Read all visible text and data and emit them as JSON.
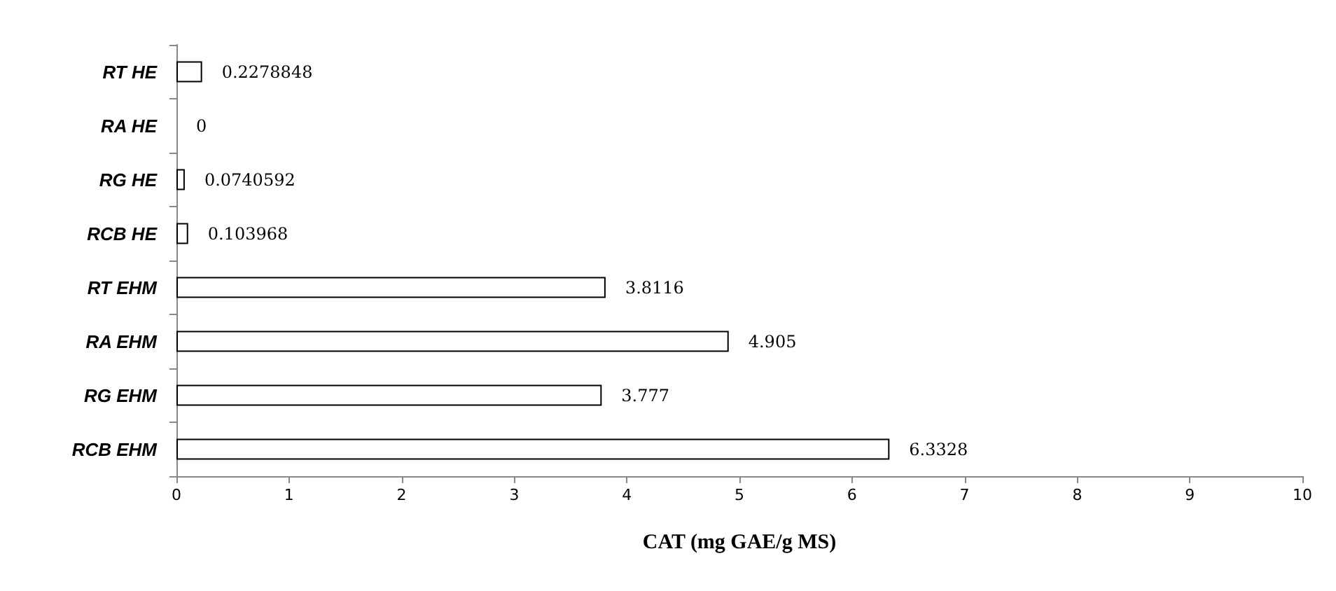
{
  "chart_data": {
    "type": "bar",
    "orientation": "horizontal",
    "categories": [
      "RT HE",
      "RA HE",
      "RG HE",
      "RCB HE",
      "RT EHM",
      "RA EHM",
      "RG EHM",
      "RCB EHM"
    ],
    "values": [
      0.2278848,
      0,
      0.0740592,
      0.103968,
      3.8116,
      4.905,
      3.777,
      6.3328
    ],
    "color": "#ffffff",
    "xlabel": "CAT (mg GAE/g MS)",
    "xlim": [
      0,
      10
    ],
    "xticks": [
      0,
      1,
      2,
      3,
      4,
      5,
      6,
      7,
      8,
      9,
      10
    ],
    "data_labels": true,
    "grid": false
  }
}
